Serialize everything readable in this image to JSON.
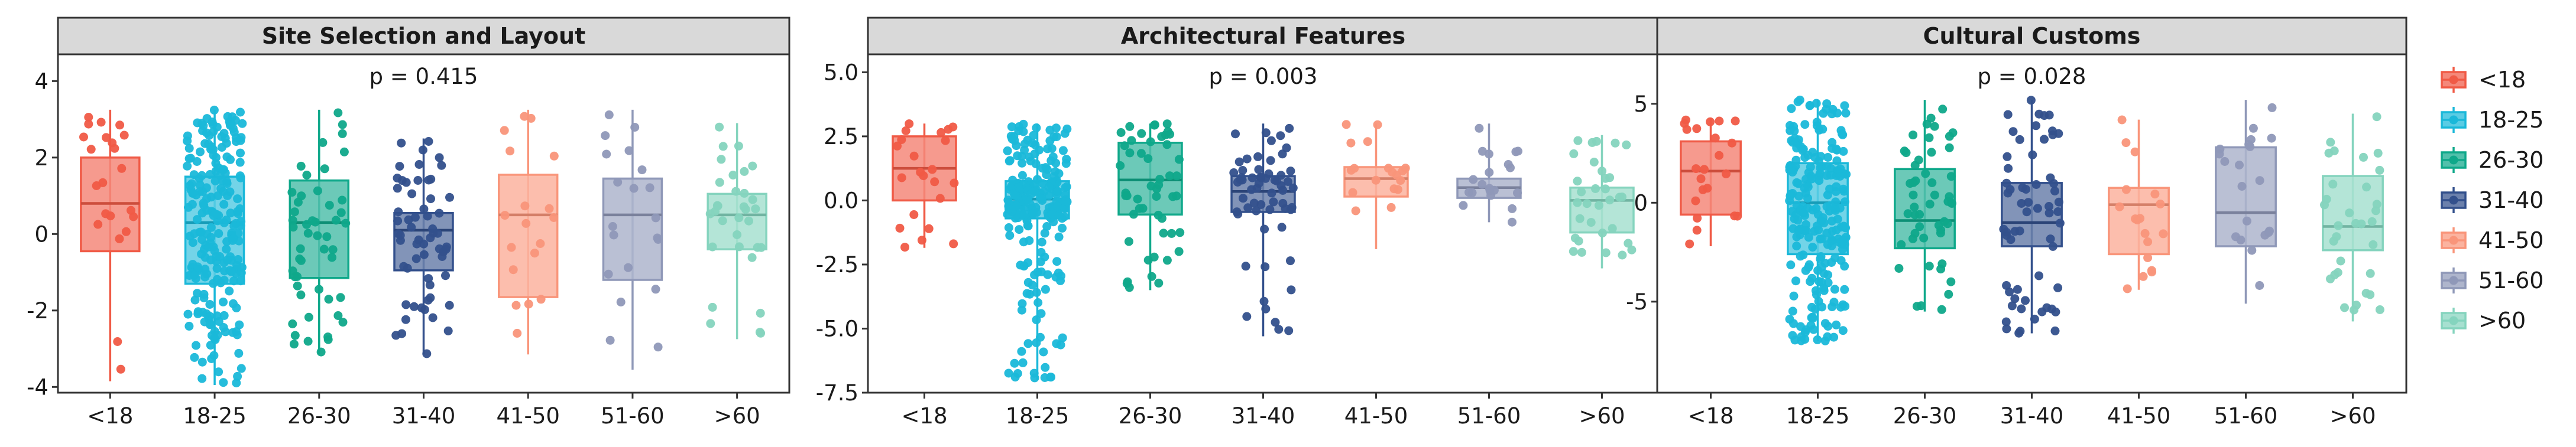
{
  "chart_data": {
    "type": "boxplot",
    "categories": [
      "<18",
      "18-25",
      "26-30",
      "31-40",
      "41-50",
      "51-60",
      ">60"
    ],
    "colors": [
      "#f05a46",
      "#1ab8d9",
      "#0fa88a",
      "#33508c",
      "#f9957a",
      "#8f98b8",
      "#85d4be"
    ],
    "legend": {
      "placement": "right",
      "entries": [
        "<18",
        "18-25",
        "26-30",
        "31-40",
        "41-50",
        "51-60",
        ">60"
      ]
    },
    "panels": [
      {
        "title": "Site Selection and Layout",
        "p_value": "p = 0.415",
        "ylim": [
          -4.15,
          4.7
        ],
        "yticks": [
          4,
          2,
          0,
          -2,
          -4
        ],
        "ytick_labels": [
          "4",
          "2",
          "0",
          "-2",
          "-4"
        ],
        "boxes": [
          {
            "group": "<18",
            "q1": -0.45,
            "median": 0.8,
            "q3": 2.0,
            "whisker_low": -3.85,
            "whisker_high": 3.25,
            "n": 22
          },
          {
            "group": "18-25",
            "q1": -1.3,
            "median": 0.3,
            "q3": 1.5,
            "whisker_low": -3.95,
            "whisker_high": 3.25,
            "n": 220
          },
          {
            "group": "26-30",
            "q1": -1.15,
            "median": 0.3,
            "q3": 1.4,
            "whisker_low": -3.15,
            "whisker_high": 3.25,
            "n": 50
          },
          {
            "group": "31-40",
            "q1": -0.95,
            "median": 0.1,
            "q3": 0.55,
            "whisker_low": -3.15,
            "whisker_high": 2.5,
            "n": 60
          },
          {
            "group": "41-50",
            "q1": -1.65,
            "median": 0.5,
            "q3": 1.55,
            "whisker_low": -3.15,
            "whisker_high": 3.25,
            "n": 18
          },
          {
            "group": "51-60",
            "q1": -1.2,
            "median": 0.5,
            "q3": 1.45,
            "whisker_low": -3.55,
            "whisker_high": 3.25,
            "n": 20
          },
          {
            "group": ">60",
            "q1": -0.4,
            "median": 0.5,
            "q3": 1.05,
            "whisker_low": -2.75,
            "whisker_high": 2.9,
            "n": 32
          }
        ]
      },
      {
        "title": "Architectural Features",
        "p_value": "p = 0.003",
        "ylim": [
          -7.5,
          5.7
        ],
        "yticks": [
          5.0,
          2.5,
          0.0,
          -2.5,
          -5.0,
          -7.5
        ],
        "ytick_labels": [
          "5.0",
          "2.5",
          "0.0",
          "-2.5",
          "-5.0",
          "-7.5"
        ],
        "boxes": [
          {
            "group": "<18",
            "q1": 0.0,
            "median": 1.25,
            "q3": 2.5,
            "whisker_low": -1.85,
            "whisker_high": 3.0,
            "n": 22
          },
          {
            "group": "18-25",
            "q1": -0.7,
            "median": 0.05,
            "q3": 0.75,
            "whisker_low": -7.0,
            "whisker_high": 3.0,
            "n": 220
          },
          {
            "group": "26-30",
            "q1": -0.55,
            "median": 0.8,
            "q3": 2.25,
            "whisker_low": -3.5,
            "whisker_high": 3.0,
            "n": 50
          },
          {
            "group": "31-40",
            "q1": -0.45,
            "median": 0.35,
            "q3": 0.95,
            "whisker_low": -5.3,
            "whisker_high": 3.0,
            "n": 60
          },
          {
            "group": "41-50",
            "q1": 0.15,
            "median": 0.85,
            "q3": 1.3,
            "whisker_low": -1.9,
            "whisker_high": 3.0,
            "n": 18
          },
          {
            "group": "51-60",
            "q1": 0.1,
            "median": 0.5,
            "q3": 0.85,
            "whisker_low": -0.85,
            "whisker_high": 3.0,
            "n": 20
          },
          {
            "group": ">60",
            "q1": -1.25,
            "median": 0.0,
            "q3": 0.5,
            "whisker_low": -2.65,
            "whisker_high": 2.55,
            "n": 32
          }
        ]
      },
      {
        "title": "Cultural Customs",
        "p_value": "p = 0.028",
        "ylim": [
          -9.6,
          7.5
        ],
        "yticks": [
          5,
          0,
          -5
        ],
        "ytick_labels": [
          "5",
          "0",
          "-5"
        ],
        "boxes": [
          {
            "group": "<18",
            "q1": -0.6,
            "median": 1.6,
            "q3": 3.1,
            "whisker_low": -2.2,
            "whisker_high": 4.3,
            "n": 22
          },
          {
            "group": "18-25",
            "q1": -2.6,
            "median": 0.0,
            "q3": 2.0,
            "whisker_low": -7.0,
            "whisker_high": 5.2,
            "n": 220
          },
          {
            "group": "26-30",
            "q1": -2.3,
            "median": -0.9,
            "q3": 1.7,
            "whisker_low": -5.5,
            "whisker_high": 5.2,
            "n": 50
          },
          {
            "group": "31-40",
            "q1": -2.2,
            "median": -1.0,
            "q3": 1.0,
            "whisker_low": -6.6,
            "whisker_high": 5.2,
            "n": 60
          },
          {
            "group": "41-50",
            "q1": -2.6,
            "median": -0.1,
            "q3": 0.75,
            "whisker_low": -4.4,
            "whisker_high": 4.2,
            "n": 18
          },
          {
            "group": "51-60",
            "q1": -2.2,
            "median": -0.5,
            "q3": 2.8,
            "whisker_low": -5.1,
            "whisker_high": 5.2,
            "n": 20
          },
          {
            "group": ">60",
            "q1": -2.4,
            "median": -1.2,
            "q3": 1.35,
            "whisker_low": -6.0,
            "whisker_high": 4.5,
            "n": 32
          }
        ]
      }
    ]
  }
}
